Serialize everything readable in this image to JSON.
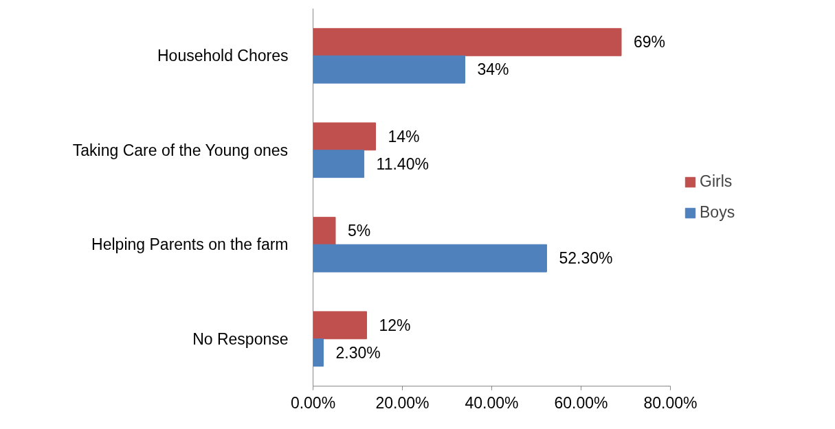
{
  "chart_data": {
    "type": "bar",
    "orientation": "horizontal",
    "categories": [
      "Household Chores",
      "Taking Care of the Young ones",
      "Helping Parents on the farm",
      "No Response"
    ],
    "series": [
      {
        "name": "Girls",
        "color": "#c0504d",
        "values": [
          69,
          14,
          5,
          12
        ],
        "value_labels": [
          "69%",
          "14%",
          "5%",
          "12%"
        ]
      },
      {
        "name": "Boys",
        "color": "#4f81bd",
        "values": [
          34,
          11.4,
          52.3,
          2.3
        ],
        "value_labels": [
          "34%",
          "11.40%",
          "52.30%",
          "2.30%"
        ]
      }
    ],
    "xlim": [
      0,
      80
    ],
    "xticks": [
      {
        "value": 0,
        "label": "0.00%"
      },
      {
        "value": 20,
        "label": "20.00%"
      },
      {
        "value": 40,
        "label": "40.00%"
      },
      {
        "value": 60,
        "label": "60.00%"
      },
      {
        "value": 80,
        "label": "80.00%"
      }
    ],
    "grid": false,
    "legend": "right"
  }
}
